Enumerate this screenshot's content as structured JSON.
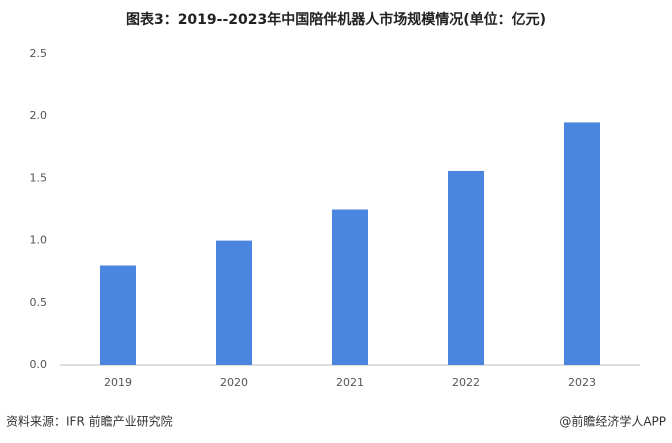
{
  "chart_data": {
    "type": "bar",
    "title": "图表3：2019--2023年中国陪伴机器人市场规模情况(单位：亿元)",
    "categories": [
      "2019",
      "2020",
      "2021",
      "2022",
      "2023"
    ],
    "values": [
      0.8,
      1.0,
      1.25,
      1.56,
      1.95
    ],
    "color": "#4a86e0",
    "ylim": [
      0,
      2.5
    ],
    "yticks": [
      {
        "value": 0,
        "label": "0.0"
      },
      0.5,
      {
        "value": 1,
        "label": "1.0"
      },
      1.5,
      {
        "value": 2,
        "label": "2.0"
      },
      2.5
    ],
    "grid": false
  },
  "footer": {
    "source": "资料来源：IFR 前瞻产业研究院",
    "credit": "@前瞻经济学人APP"
  }
}
